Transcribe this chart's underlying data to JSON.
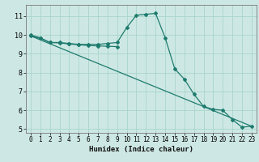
{
  "xlabel": "Humidex (Indice chaleur)",
  "xlim": [
    -0.5,
    23.5
  ],
  "ylim": [
    4.8,
    11.6
  ],
  "yticks": [
    5,
    6,
    7,
    8,
    9,
    10,
    11
  ],
  "xticks": [
    0,
    1,
    2,
    3,
    4,
    5,
    6,
    7,
    8,
    9,
    10,
    11,
    12,
    13,
    14,
    15,
    16,
    17,
    18,
    19,
    20,
    21,
    22,
    23
  ],
  "bg_color": "#cde8e4",
  "line_color": "#1e7b6e",
  "grid_color": "#a8d4cc",
  "line1_x": [
    0,
    1,
    2,
    3,
    4,
    5,
    6,
    7,
    8,
    9,
    10,
    11,
    12,
    13,
    14,
    15,
    16,
    17,
    18,
    19,
    20,
    21,
    22,
    23
  ],
  "line1_y": [
    10.0,
    9.85,
    9.6,
    9.6,
    9.55,
    9.5,
    9.5,
    9.5,
    9.55,
    9.6,
    10.4,
    11.05,
    11.1,
    11.15,
    9.85,
    8.2,
    7.65,
    6.85,
    6.2,
    6.05,
    6.0,
    5.5,
    5.1,
    5.15
  ],
  "line2_x": [
    0,
    1,
    2,
    3,
    4,
    5,
    6,
    7,
    8,
    9
  ],
  "line2_y": [
    9.95,
    9.82,
    9.6,
    9.58,
    9.52,
    9.48,
    9.44,
    9.42,
    9.4,
    9.38
  ],
  "line3_x": [
    0,
    23
  ],
  "line3_y": [
    9.95,
    5.15
  ]
}
